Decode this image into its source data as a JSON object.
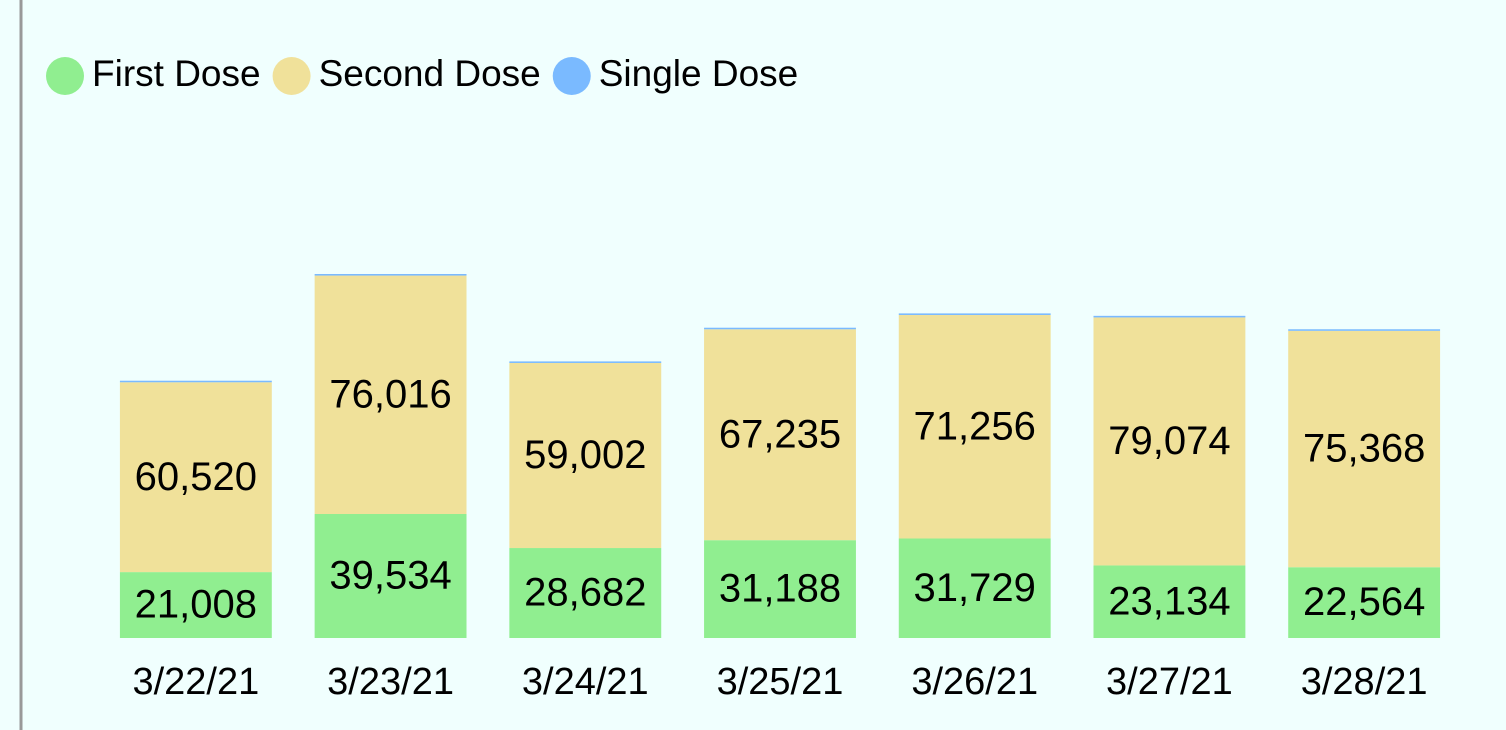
{
  "chart_data": {
    "type": "stacked-bar",
    "categories": [
      "3/22/21",
      "3/23/21",
      "3/24/21",
      "3/25/21",
      "3/26/21",
      "3/27/21",
      "3/28/21"
    ],
    "series": [
      {
        "name": "First Dose",
        "color": "#90ee90",
        "values": [
          21008,
          39534,
          28682,
          31188,
          31729,
          23134,
          22564
        ],
        "value_labels": [
          "21,008",
          "39,534",
          "28,682",
          "31,188",
          "31,729",
          "23,134",
          "22,564"
        ]
      },
      {
        "name": "Second Dose",
        "color": "#f0e19a",
        "values": [
          60520,
          76016,
          59002,
          67235,
          71256,
          79074,
          75368
        ],
        "value_labels": [
          "60,520",
          "76,016",
          "59,002",
          "67,235",
          "71,256",
          "79,074",
          "75,368"
        ]
      },
      {
        "name": "Single Dose",
        "color": "#7abaff",
        "values": [
          500,
          500,
          500,
          500,
          500,
          500,
          500
        ]
      }
    ],
    "legend": "top-left"
  }
}
